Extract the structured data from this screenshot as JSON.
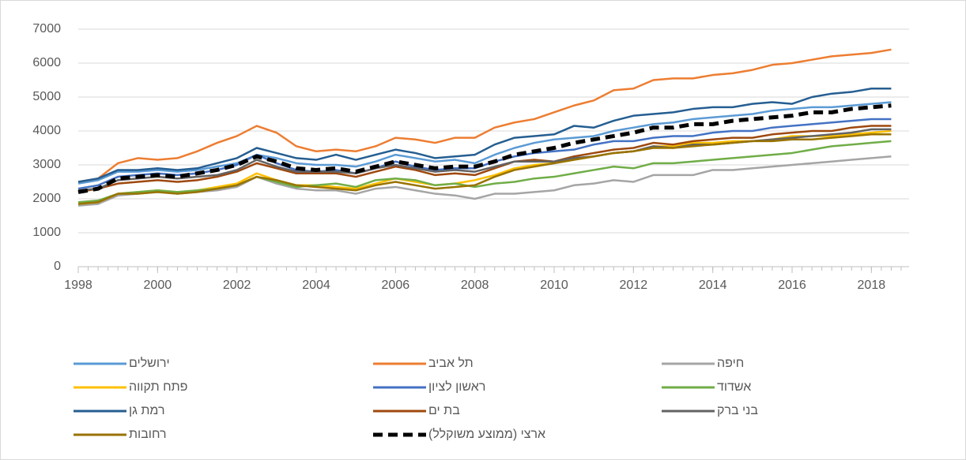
{
  "chart_data": {
    "type": "line",
    "x": [
      1998,
      1998.5,
      1999,
      1999.5,
      2000,
      2000.5,
      2001,
      2001.5,
      2002,
      2002.5,
      2003,
      2003.5,
      2004,
      2004.5,
      2005,
      2005.5,
      2006,
      2006.5,
      2007,
      2007.5,
      2008,
      2008.5,
      2009,
      2009.5,
      2010,
      2010.5,
      2011,
      2011.5,
      2012,
      2012.5,
      2013,
      2013.5,
      2014,
      2014.5,
      2015,
      2015.5,
      2016,
      2016.5,
      2017,
      2017.5,
      2018,
      2018.5
    ],
    "xlim": [
      1998,
      2018.95
    ],
    "xticks": [
      1998,
      2000,
      2002,
      2004,
      2006,
      2008,
      2010,
      2012,
      2014,
      2016,
      2018
    ],
    "ylim": [
      0,
      7000
    ],
    "yticks": [
      0,
      1000,
      2000,
      3000,
      4000,
      5000,
      6000,
      7000
    ],
    "grid": true,
    "series": [
      {
        "name": "ירושלים",
        "color": "#5b9bd5",
        "values": [
          2450,
          2550,
          2800,
          2800,
          2850,
          2800,
          2850,
          2950,
          3050,
          3300,
          3200,
          3050,
          3000,
          3000,
          2950,
          3100,
          3300,
          3200,
          3100,
          3150,
          3050,
          3300,
          3500,
          3650,
          3750,
          3800,
          3850,
          4000,
          4100,
          4200,
          4250,
          4350,
          4400,
          4450,
          4500,
          4600,
          4650,
          4700,
          4700,
          4750,
          4800,
          4850
        ]
      },
      {
        "name": "תל אביב",
        "color": "#ed7d31",
        "values": [
          2500,
          2600,
          3050,
          3200,
          3150,
          3200,
          3400,
          3650,
          3850,
          4150,
          3950,
          3550,
          3400,
          3450,
          3400,
          3550,
          3800,
          3750,
          3650,
          3800,
          3800,
          4100,
          4250,
          4350,
          4550,
          4750,
          4900,
          5200,
          5250,
          5500,
          5550,
          5550,
          5650,
          5700,
          5800,
          5950,
          6000,
          6100,
          6200,
          6250,
          6300,
          6400
        ]
      },
      {
        "name": "חיפה",
        "color": "#a5a5a5",
        "values": [
          1800,
          1850,
          2100,
          2150,
          2200,
          2150,
          2200,
          2250,
          2350,
          2650,
          2450,
          2300,
          2250,
          2250,
          2150,
          2300,
          2350,
          2250,
          2150,
          2100,
          2000,
          2150,
          2150,
          2200,
          2250,
          2400,
          2450,
          2550,
          2500,
          2700,
          2700,
          2700,
          2850,
          2850,
          2900,
          2950,
          3000,
          3050,
          3100,
          3150,
          3200,
          3250
        ]
      },
      {
        "name": "פתח תקווה",
        "color": "#ffc000",
        "values": [
          1850,
          1900,
          2150,
          2200,
          2250,
          2200,
          2250,
          2350,
          2450,
          2750,
          2550,
          2400,
          2400,
          2350,
          2300,
          2450,
          2600,
          2500,
          2400,
          2450,
          2550,
          2700,
          2900,
          3000,
          3050,
          3150,
          3250,
          3350,
          3400,
          3550,
          3550,
          3650,
          3650,
          3700,
          3700,
          3750,
          3850,
          3850,
          3850,
          3900,
          3950,
          4000
        ]
      },
      {
        "name": "ראשון לציון",
        "color": "#4472c4",
        "values": [
          2300,
          2400,
          2650,
          2700,
          2750,
          2700,
          2750,
          2850,
          3000,
          3300,
          3050,
          2850,
          2800,
          2850,
          2750,
          2900,
          3100,
          2950,
          2850,
          2900,
          2900,
          3100,
          3250,
          3350,
          3400,
          3450,
          3600,
          3700,
          3700,
          3800,
          3850,
          3850,
          3950,
          4000,
          4000,
          4100,
          4150,
          4200,
          4250,
          4300,
          4350,
          4350
        ]
      },
      {
        "name": "אשדוד",
        "color": "#70ad47",
        "values": [
          1900,
          1950,
          2150,
          2200,
          2250,
          2200,
          2250,
          2300,
          2400,
          2650,
          2500,
          2350,
          2400,
          2450,
          2350,
          2550,
          2600,
          2550,
          2400,
          2450,
          2350,
          2450,
          2500,
          2600,
          2650,
          2750,
          2850,
          2950,
          2900,
          3050,
          3050,
          3100,
          3150,
          3200,
          3250,
          3300,
          3350,
          3450,
          3550,
          3600,
          3650,
          3700
        ]
      },
      {
        "name": "רמת גן",
        "color": "#255e91",
        "values": [
          2500,
          2600,
          2850,
          2850,
          2900,
          2850,
          2900,
          3050,
          3200,
          3500,
          3350,
          3200,
          3150,
          3300,
          3150,
          3300,
          3450,
          3350,
          3200,
          3250,
          3300,
          3600,
          3800,
          3850,
          3900,
          4150,
          4100,
          4300,
          4450,
          4500,
          4550,
          4650,
          4700,
          4700,
          4800,
          4850,
          4800,
          5000,
          5100,
          5150,
          5250,
          5250
        ]
      },
      {
        "name": "בת ים",
        "color": "#9e480e",
        "values": [
          2200,
          2300,
          2450,
          2500,
          2550,
          2500,
          2550,
          2650,
          2800,
          3050,
          2900,
          2750,
          2750,
          2750,
          2650,
          2800,
          2950,
          2850,
          2700,
          2750,
          2700,
          2900,
          3100,
          3150,
          3100,
          3250,
          3350,
          3450,
          3500,
          3650,
          3600,
          3700,
          3750,
          3800,
          3800,
          3900,
          3950,
          4000,
          4000,
          4100,
          4150,
          4150
        ]
      },
      {
        "name": "בני ברק",
        "color": "#636363",
        "values": [
          2250,
          2300,
          2550,
          2600,
          2650,
          2600,
          2650,
          2700,
          2850,
          3150,
          2950,
          2800,
          2800,
          2800,
          2750,
          2900,
          3000,
          2900,
          2800,
          2850,
          2800,
          2950,
          3100,
          3100,
          3100,
          3200,
          3250,
          3350,
          3400,
          3550,
          3500,
          3600,
          3600,
          3650,
          3700,
          3750,
          3800,
          3850,
          3900,
          3950,
          4050,
          4050
        ]
      },
      {
        "name": "רחובות",
        "color": "#997300",
        "values": [
          1850,
          1900,
          2150,
          2150,
          2200,
          2150,
          2200,
          2300,
          2400,
          2650,
          2550,
          2400,
          2350,
          2300,
          2250,
          2400,
          2500,
          2400,
          2300,
          2350,
          2400,
          2650,
          2850,
          2950,
          3050,
          3150,
          3250,
          3350,
          3400,
          3500,
          3500,
          3550,
          3600,
          3650,
          3700,
          3700,
          3750,
          3750,
          3800,
          3850,
          3900,
          3900
        ]
      },
      {
        "name": "ארצי (ממוצע משוקלל)",
        "color": "#000000",
        "dashed": true,
        "values": [
          2200,
          2300,
          2600,
          2650,
          2700,
          2650,
          2750,
          2850,
          3000,
          3250,
          3100,
          2900,
          2850,
          2900,
          2800,
          2950,
          3100,
          3000,
          2900,
          2950,
          2950,
          3100,
          3300,
          3400,
          3500,
          3650,
          3750,
          3850,
          3950,
          4100,
          4100,
          4200,
          4200,
          4300,
          4350,
          4400,
          4450,
          4550,
          4550,
          4650,
          4700,
          4750
        ]
      }
    ]
  }
}
